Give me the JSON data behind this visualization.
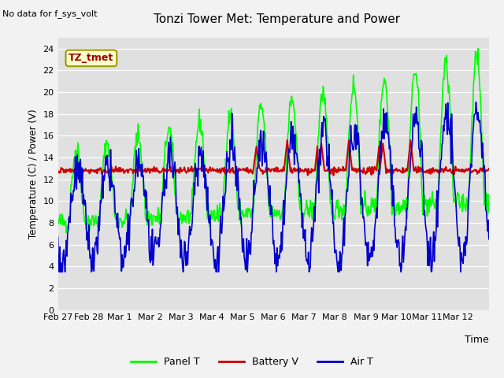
{
  "title": "Tonzi Tower Met: Temperature and Power",
  "no_data_text": "No data for f_sys_volt",
  "xlabel": "Time",
  "ylabel": "Temperature (C) / Power (V)",
  "ylim": [
    0,
    25
  ],
  "yticks": [
    0,
    2,
    4,
    6,
    8,
    10,
    12,
    14,
    16,
    18,
    20,
    22,
    24
  ],
  "xlabels": [
    "Feb 27",
    "Feb 28",
    "Mar 1",
    "Mar 2",
    "Mar 3",
    "Mar 4",
    "Mar 5",
    "Mar 6",
    "Mar 7",
    "Mar 8",
    "Mar 9",
    "Mar 10",
    "Mar 11",
    "Mar 12"
  ],
  "panel_color": "#00FF00",
  "battery_color": "#CC0000",
  "air_color": "#0000CC",
  "legend_label_panel": "Panel T",
  "legend_label_battery": "Battery V",
  "legend_label_air": "Air T",
  "annotation_text": "TZ_tmet",
  "bg_color": "#E0E0E0",
  "fig_bg": "#F2F2F2",
  "n_days": 14,
  "pts_per_day": 48
}
